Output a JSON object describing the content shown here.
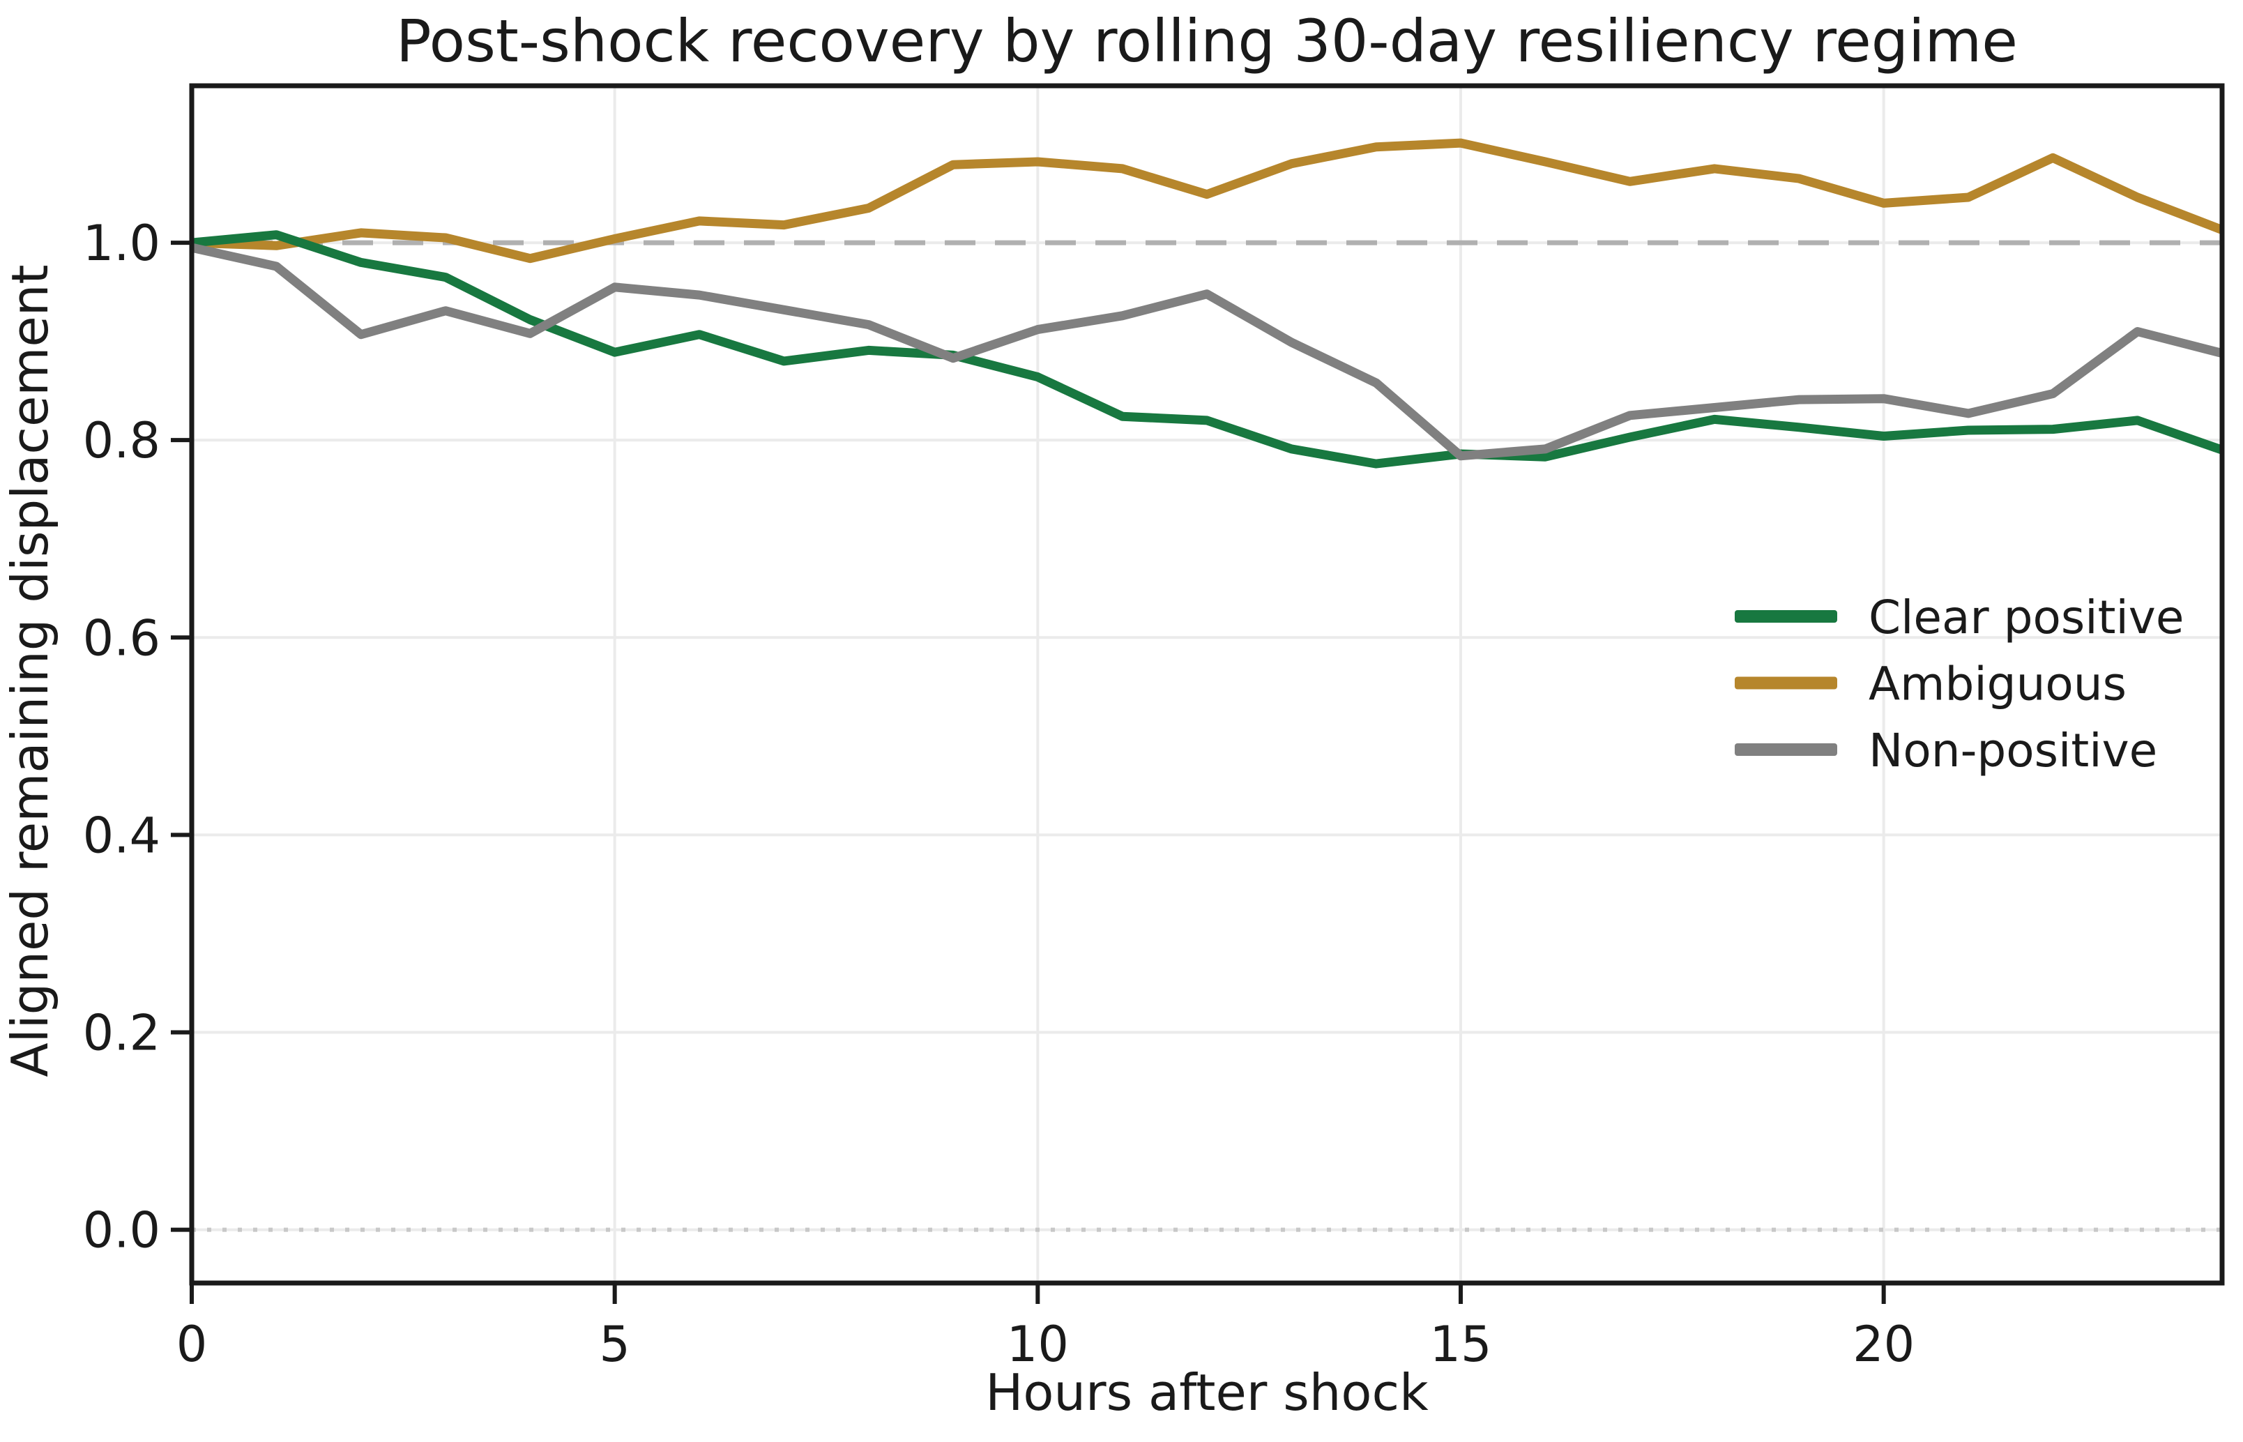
{
  "figure": {
    "background": "#ffffff",
    "text_color": "#1a1a1a",
    "grid_color": "#ebebeb",
    "spine_color": "#1a1a1a"
  },
  "chart_data": {
    "type": "line",
    "title": "Post-shock recovery by rolling 30-day resiliency regime",
    "xlabel": "Hours after shock",
    "ylabel": "Aligned remaining displacement",
    "x": [
      0,
      1,
      2,
      3,
      4,
      5,
      6,
      7,
      8,
      9,
      10,
      11,
      12,
      13,
      14,
      15,
      16,
      17,
      18,
      19,
      20,
      21,
      22,
      23,
      24
    ],
    "series": [
      {
        "name": "Clear positive",
        "color": "#187840",
        "values": [
          1.0,
          1.008,
          0.98,
          0.965,
          0.922,
          0.889,
          0.907,
          0.88,
          0.891,
          0.886,
          0.864,
          0.824,
          0.82,
          0.791,
          0.776,
          0.786,
          0.783,
          0.803,
          0.821,
          0.813,
          0.804,
          0.81,
          0.811,
          0.82,
          0.79
        ]
      },
      {
        "name": "Ambiguous",
        "color": "#b6862c",
        "values": [
          1.0,
          0.997,
          1.01,
          1.005,
          0.984,
          1.004,
          1.022,
          1.018,
          1.035,
          1.079,
          1.082,
          1.075,
          1.049,
          1.08,
          1.097,
          1.101,
          1.082,
          1.062,
          1.075,
          1.065,
          1.04,
          1.046,
          1.086,
          1.046,
          1.013
        ]
      },
      {
        "name": "Non-positive",
        "color": "#808080",
        "values": [
          0.995,
          0.976,
          0.907,
          0.931,
          0.908,
          0.955,
          0.947,
          0.932,
          0.917,
          0.883,
          0.912,
          0.926,
          0.948,
          0.899,
          0.858,
          0.784,
          0.791,
          0.825,
          0.833,
          0.841,
          0.842,
          0.827,
          0.847,
          0.91,
          0.888
        ]
      }
    ],
    "draw_order": [
      1,
      0,
      2
    ],
    "xlim": [
      0,
      24
    ],
    "ylim": [
      -0.054,
      1.159
    ],
    "xticks": [
      0,
      5,
      10,
      15,
      20
    ],
    "xtick_labels": [
      "0",
      "5",
      "10",
      "15",
      "20"
    ],
    "yticks": [
      0.0,
      0.2,
      0.4,
      0.6,
      0.8,
      1.0
    ],
    "ytick_labels": [
      "0.0",
      "0.2",
      "0.4",
      "0.6",
      "0.8",
      "1.0"
    ],
    "grid": true,
    "legend_position": "center right",
    "reference_lines": [
      {
        "y": 1.0,
        "style": "dashed",
        "color": "#b0b0b0"
      },
      {
        "y": 0.0,
        "style": "dotted",
        "color": "#c8c8c8"
      }
    ]
  },
  "legend": {
    "items": [
      {
        "label": "Clear positive",
        "color": "#187840"
      },
      {
        "label": "Ambiguous",
        "color": "#b6862c"
      },
      {
        "label": "Non-positive",
        "color": "#808080"
      }
    ]
  }
}
